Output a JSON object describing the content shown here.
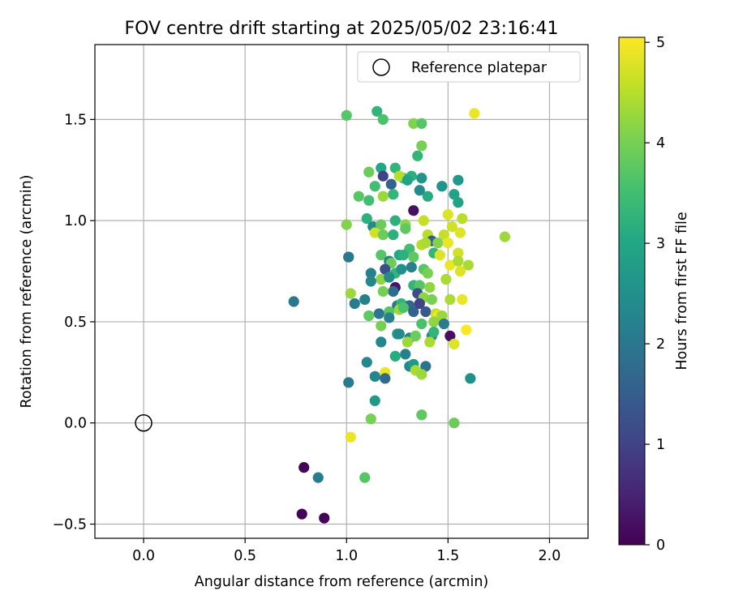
{
  "chart_data": {
    "type": "scatter",
    "title": "FOV centre drift starting at 2025/05/02 23:16:41",
    "xlabel": "Angular distance from reference (arcmin)",
    "ylabel": "Rotation from reference (arcmin)",
    "xlim": [
      -0.24,
      2.19
    ],
    "ylim": [
      -0.57,
      1.87
    ],
    "xticks": [
      0.0,
      0.5,
      1.0,
      1.5,
      2.0
    ],
    "xtick_labels": [
      "0.0",
      "0.5",
      "1.0",
      "1.5",
      "2.0"
    ],
    "yticks": [
      -0.5,
      0.0,
      0.5,
      1.0,
      1.5
    ],
    "ytick_labels": [
      "−0.5",
      "0.0",
      "0.5",
      "1.0",
      "1.5"
    ],
    "grid": true,
    "legend": {
      "position": "top-right",
      "entries": [
        "Reference platepar"
      ]
    },
    "reference": {
      "label": "Reference platepar",
      "x": 0.0,
      "y": 0.0,
      "marker": "open-circle"
    },
    "colorbar": {
      "label": "Hours from first FF file",
      "min": 0,
      "max": 5.05,
      "ticks": [
        0,
        1,
        2,
        3,
        4,
        5
      ],
      "tick_labels": [
        "0",
        "1",
        "2",
        "3",
        "4",
        "5"
      ],
      "colormap": "viridis"
    },
    "point_fields": [
      "x",
      "y",
      "hours"
    ],
    "points": [
      [
        0.79,
        -0.22,
        0.05
      ],
      [
        0.78,
        -0.45,
        0.05
      ],
      [
        0.89,
        -0.47,
        0.05
      ],
      [
        0.86,
        -0.27,
        2.1
      ],
      [
        0.74,
        0.6,
        2.0
      ],
      [
        1.01,
        0.82,
        2.0
      ],
      [
        1.01,
        0.2,
        2.1
      ],
      [
        1.04,
        0.59,
        2.1
      ],
      [
        1.02,
        -0.07,
        4.9
      ],
      [
        1.09,
        -0.27,
        3.7
      ],
      [
        1.12,
        0.02,
        4.0
      ],
      [
        1.14,
        0.11,
        2.7
      ],
      [
        1.0,
        0.98,
        4.1
      ],
      [
        1.02,
        0.64,
        4.3
      ],
      [
        1.0,
        1.52,
        3.7
      ],
      [
        1.15,
        1.54,
        3.3
      ],
      [
        1.18,
        1.5,
        3.6
      ],
      [
        1.33,
        1.48,
        4.1
      ],
      [
        1.37,
        1.48,
        3.7
      ],
      [
        1.63,
        1.53,
        4.9
      ],
      [
        1.37,
        1.37,
        4.0
      ],
      [
        1.35,
        1.32,
        3.3
      ],
      [
        1.17,
        1.26,
        3.0
      ],
      [
        1.24,
        1.26,
        3.3
      ],
      [
        1.11,
        1.24,
        3.9
      ],
      [
        1.28,
        1.21,
        3.5
      ],
      [
        1.32,
        1.22,
        3.2
      ],
      [
        1.37,
        1.21,
        2.6
      ],
      [
        1.55,
        1.2,
        2.7
      ],
      [
        1.18,
        1.22,
        1.0
      ],
      [
        1.26,
        1.22,
        4.5
      ],
      [
        1.22,
        1.18,
        1.6
      ],
      [
        1.3,
        1.2,
        2.9
      ],
      [
        1.14,
        1.17,
        3.5
      ],
      [
        1.36,
        1.15,
        2.4
      ],
      [
        1.23,
        1.13,
        3.3
      ],
      [
        1.06,
        1.12,
        3.7
      ],
      [
        1.18,
        1.12,
        4.3
      ],
      [
        1.4,
        1.12,
        3.1
      ],
      [
        1.47,
        1.17,
        2.6
      ],
      [
        1.53,
        1.13,
        2.9
      ],
      [
        1.55,
        1.09,
        2.9
      ],
      [
        1.11,
        1.1,
        3.5
      ],
      [
        1.33,
        1.05,
        0.2
      ],
      [
        1.1,
        1.01,
        3.2
      ],
      [
        1.13,
        0.97,
        2.4
      ],
      [
        1.17,
        0.98,
        3.9
      ],
      [
        1.24,
        1.0,
        3.2
      ],
      [
        1.29,
        0.98,
        4.2
      ],
      [
        1.38,
        1.0,
        4.6
      ],
      [
        1.5,
        1.03,
        4.8
      ],
      [
        1.57,
        1.01,
        4.5
      ],
      [
        1.52,
        0.97,
        4.7
      ],
      [
        1.29,
        0.96,
        3.8
      ],
      [
        1.14,
        0.94,
        4.7
      ],
      [
        1.18,
        0.93,
        3.9
      ],
      [
        1.23,
        0.93,
        3.2
      ],
      [
        1.4,
        0.93,
        4.5
      ],
      [
        1.48,
        0.93,
        4.6
      ],
      [
        1.56,
        0.94,
        4.8
      ],
      [
        1.78,
        0.92,
        4.3
      ],
      [
        1.42,
        0.9,
        1.5
      ],
      [
        1.37,
        0.88,
        4.5
      ],
      [
        1.39,
        0.89,
        4.4
      ],
      [
        1.45,
        0.89,
        4.1
      ],
      [
        1.5,
        0.89,
        4.9
      ],
      [
        1.31,
        0.86,
        3.5
      ],
      [
        1.17,
        0.83,
        3.7
      ],
      [
        1.26,
        0.83,
        3.0
      ],
      [
        1.28,
        0.83,
        3.2
      ],
      [
        1.33,
        0.82,
        3.8
      ],
      [
        1.43,
        0.84,
        3.3
      ],
      [
        1.46,
        0.83,
        4.8
      ],
      [
        1.55,
        0.84,
        4.7
      ],
      [
        1.51,
        0.78,
        4.9
      ],
      [
        1.55,
        0.8,
        4.4
      ],
      [
        1.6,
        0.78,
        4.4
      ],
      [
        1.01,
        0.82,
        2.0
      ],
      [
        1.21,
        0.8,
        2.2
      ],
      [
        1.22,
        0.79,
        3.9
      ],
      [
        1.32,
        0.77,
        2.2
      ],
      [
        1.19,
        0.76,
        1.2
      ],
      [
        1.24,
        0.74,
        3.3
      ],
      [
        1.27,
        0.76,
        2.5
      ],
      [
        1.38,
        0.76,
        3.7
      ],
      [
        1.4,
        0.74,
        4.0
      ],
      [
        1.56,
        0.75,
        4.8
      ],
      [
        1.12,
        0.74,
        2.2
      ],
      [
        1.17,
        0.71,
        4.2
      ],
      [
        1.12,
        0.7,
        2.3
      ],
      [
        1.21,
        0.72,
        2.4
      ],
      [
        1.49,
        0.71,
        4.4
      ],
      [
        1.24,
        0.67,
        0.3
      ],
      [
        1.23,
        0.65,
        1.8
      ],
      [
        1.33,
        0.68,
        3.3
      ],
      [
        1.36,
        0.68,
        3.7
      ],
      [
        1.41,
        0.67,
        4.2
      ],
      [
        1.18,
        0.65,
        4.0
      ],
      [
        1.35,
        0.64,
        1.2
      ],
      [
        1.38,
        0.62,
        4.2
      ],
      [
        1.42,
        0.61,
        4.0
      ],
      [
        1.51,
        0.61,
        4.4
      ],
      [
        1.57,
        0.61,
        4.9
      ],
      [
        1.09,
        0.61,
        2.2
      ],
      [
        1.25,
        0.58,
        1.9
      ],
      [
        1.27,
        0.59,
        3.3
      ],
      [
        1.31,
        0.58,
        1.7
      ],
      [
        1.33,
        0.55,
        1.6
      ],
      [
        1.36,
        0.59,
        1.0
      ],
      [
        1.21,
        0.55,
        3.7
      ],
      [
        1.26,
        0.56,
        4.3
      ],
      [
        1.28,
        0.57,
        3.6
      ],
      [
        1.39,
        0.55,
        1.4
      ],
      [
        1.44,
        0.54,
        4.6
      ],
      [
        1.45,
        0.53,
        4.9
      ],
      [
        1.47,
        0.53,
        4.3
      ],
      [
        1.16,
        0.54,
        2.0
      ],
      [
        1.11,
        0.53,
        3.8
      ],
      [
        1.21,
        0.52,
        2.2
      ],
      [
        1.37,
        0.49,
        3.6
      ],
      [
        1.43,
        0.5,
        4.2
      ],
      [
        1.48,
        0.49,
        2.1
      ],
      [
        1.51,
        0.43,
        0.2
      ],
      [
        1.17,
        0.48,
        4.0
      ],
      [
        1.25,
        0.44,
        2.7
      ],
      [
        1.26,
        0.44,
        2.4
      ],
      [
        1.31,
        0.42,
        2.3
      ],
      [
        1.34,
        0.43,
        3.9
      ],
      [
        1.42,
        0.43,
        2.4
      ],
      [
        1.43,
        0.45,
        3.3
      ],
      [
        1.41,
        0.4,
        4.4
      ],
      [
        1.3,
        0.4,
        4.3
      ],
      [
        1.53,
        0.39,
        4.8
      ],
      [
        1.59,
        0.46,
        5.05
      ],
      [
        1.17,
        0.4,
        2.3
      ],
      [
        1.29,
        0.34,
        2.2
      ],
      [
        1.24,
        0.33,
        3.1
      ],
      [
        1.1,
        0.3,
        2.3
      ],
      [
        1.31,
        0.28,
        2.3
      ],
      [
        1.33,
        0.29,
        2.7
      ],
      [
        1.34,
        0.26,
        4.4
      ],
      [
        1.39,
        0.28,
        1.9
      ],
      [
        1.37,
        0.24,
        4.3
      ],
      [
        1.19,
        0.25,
        4.9
      ],
      [
        1.14,
        0.23,
        2.3
      ],
      [
        1.19,
        0.22,
        1.7
      ],
      [
        1.61,
        0.22,
        2.5
      ],
      [
        1.37,
        0.04,
        3.8
      ],
      [
        1.53,
        0.0,
        3.9
      ]
    ]
  }
}
